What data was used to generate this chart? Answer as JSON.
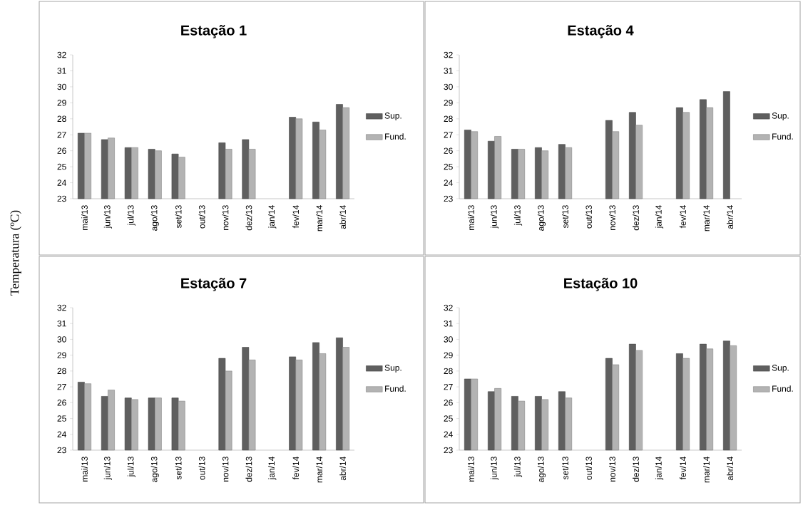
{
  "chart_data": [
    {
      "type": "bar",
      "title": "Estação 1",
      "ylabel": "Temperatura (ºC)",
      "categories": [
        "mai/13",
        "jun/13",
        "jul/13",
        "ago/13",
        "set/13",
        "out/13",
        "nov/13",
        "dez/13",
        "jan/14",
        "fev/14",
        "mar/14",
        "abr/14"
      ],
      "ylim": [
        23,
        32
      ],
      "yticks": [
        23,
        24,
        25,
        26,
        27,
        28,
        29,
        30,
        31,
        32
      ],
      "legend": "right",
      "grid": false,
      "series": [
        {
          "name": "Sup.",
          "color": "#5f5f5f",
          "values": [
            27.1,
            26.7,
            26.2,
            26.1,
            25.8,
            null,
            26.5,
            26.7,
            null,
            28.1,
            27.8,
            28.9
          ]
        },
        {
          "name": "Fund.",
          "color": "#b3b3b3",
          "values": [
            27.1,
            26.8,
            26.2,
            26.0,
            25.6,
            null,
            26.1,
            26.1,
            null,
            28.0,
            27.3,
            28.7
          ]
        }
      ]
    },
    {
      "type": "bar",
      "title": "Estação 4",
      "categories": [
        "mai/13",
        "jun/13",
        "jul/13",
        "ago/13",
        "set/13",
        "out/13",
        "nov/13",
        "dez/13",
        "jan/14",
        "fev/14",
        "mar/14",
        "abr/14"
      ],
      "ylim": [
        23,
        32
      ],
      "yticks": [
        23,
        24,
        25,
        26,
        27,
        28,
        29,
        30,
        31,
        32
      ],
      "legend": "right",
      "grid": false,
      "series": [
        {
          "name": "Sup.",
          "color": "#5f5f5f",
          "values": [
            27.3,
            26.6,
            26.1,
            26.2,
            26.4,
            null,
            27.9,
            28.4,
            null,
            28.7,
            29.2,
            29.7
          ]
        },
        {
          "name": "Fund.",
          "color": "#b3b3b3",
          "values": [
            27.2,
            26.9,
            26.1,
            26.0,
            26.2,
            null,
            27.2,
            27.6,
            null,
            28.4,
            28.7,
            null
          ]
        }
      ]
    },
    {
      "type": "bar",
      "title": "Estação 7",
      "categories": [
        "mai/13",
        "jun/13",
        "jul/13",
        "ago/13",
        "set/13",
        "out/13",
        "nov/13",
        "dez/13",
        "jan/14",
        "fev/14",
        "mar/14",
        "abr/14"
      ],
      "ylim": [
        23,
        32
      ],
      "yticks": [
        23,
        24,
        25,
        26,
        27,
        28,
        29,
        30,
        31,
        32
      ],
      "legend": "right",
      "grid": false,
      "series": [
        {
          "name": "Sup.",
          "color": "#5f5f5f",
          "values": [
            27.3,
            26.4,
            26.3,
            26.3,
            26.3,
            null,
            28.8,
            29.5,
            null,
            28.9,
            29.8,
            30.1
          ]
        },
        {
          "name": "Fund.",
          "color": "#b3b3b3",
          "values": [
            27.2,
            26.8,
            26.2,
            26.3,
            26.1,
            null,
            28.0,
            28.7,
            null,
            28.7,
            29.1,
            29.5
          ]
        }
      ]
    },
    {
      "type": "bar",
      "title": "Estação 10",
      "categories": [
        "mai/13",
        "jun/13",
        "jul/13",
        "ago/13",
        "set/13",
        "out/13",
        "nov/13",
        "dez/13",
        "jan/14",
        "fev/14",
        "mar/14",
        "abr/14"
      ],
      "ylim": [
        23,
        32
      ],
      "yticks": [
        23,
        24,
        25,
        26,
        27,
        28,
        29,
        30,
        31,
        32
      ],
      "legend": "right",
      "grid": false,
      "series": [
        {
          "name": "Sup.",
          "color": "#5f5f5f",
          "values": [
            27.5,
            26.7,
            26.4,
            26.4,
            26.7,
            null,
            28.8,
            29.7,
            null,
            29.1,
            29.7,
            29.9
          ]
        },
        {
          "name": "Fund.",
          "color": "#b3b3b3",
          "values": [
            27.5,
            26.9,
            26.1,
            26.2,
            26.3,
            null,
            28.4,
            29.3,
            null,
            28.8,
            29.4,
            29.6
          ]
        }
      ]
    }
  ]
}
